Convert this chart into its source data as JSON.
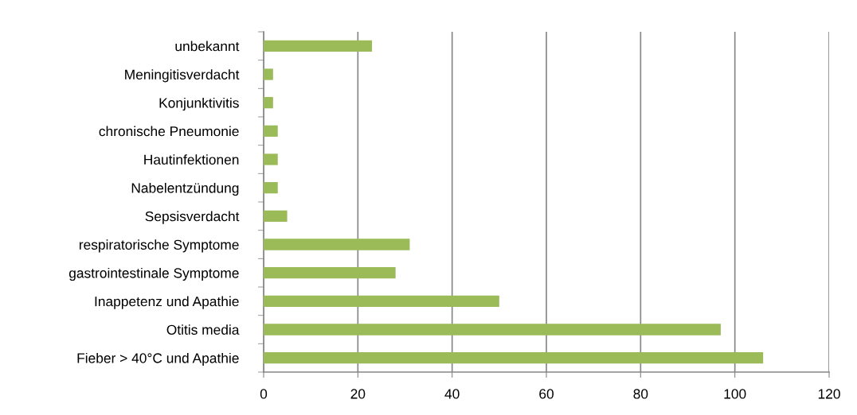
{
  "chart_data": {
    "type": "bar",
    "orientation": "horizontal",
    "categories": [
      "unbekannt",
      "Meningitisverdacht",
      "Konjunktivitis",
      "chronische Pneumonie",
      "Hautinfektionen",
      "Nabelentzündung",
      "Sepsisverdacht",
      "respiratorische Symptome",
      "gastrointestinale Symptome",
      "Inappetenz und Apathie",
      "Otitis media",
      "Fieber > 40°C und Apathie"
    ],
    "values": [
      23,
      2,
      2,
      3,
      3,
      3,
      5,
      31,
      28,
      50,
      97,
      106
    ],
    "color": "#9bbb59",
    "xlim": [
      0,
      120
    ],
    "xticks": [
      0,
      20,
      40,
      60,
      80,
      100,
      120
    ],
    "grid": "x"
  }
}
